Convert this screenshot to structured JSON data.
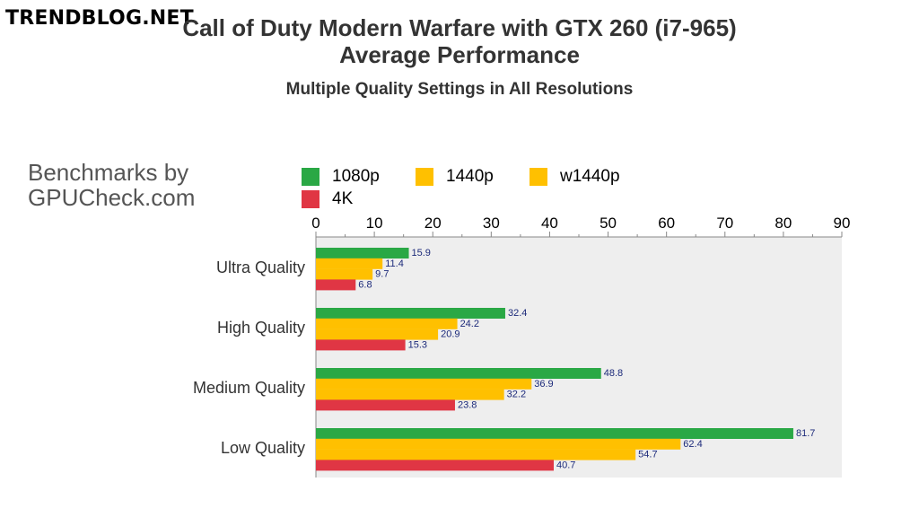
{
  "watermark": "TRENDBLOG.NET",
  "credit": {
    "line1": "Benchmarks by",
    "line2": "GPUCheck.com"
  },
  "colors": {
    "1080p": "#2aa845",
    "1440p": "#ffc000",
    "w1440p": "#ffc000",
    "4K": "#e03644"
  },
  "chart_data": {
    "type": "bar",
    "orientation": "horizontal",
    "title": "Call of Duty Modern Warfare with GTX 260 (i7-965)",
    "title_line2": "Average Performance",
    "subtitle": "Multiple Quality Settings in All Resolutions",
    "xlabel": "",
    "ylabel": "",
    "xlim": [
      0,
      90
    ],
    "ticks": [
      "0",
      "10",
      "20",
      "30",
      "40",
      "50",
      "60",
      "70",
      "80",
      "90"
    ],
    "categories": [
      "Ultra Quality",
      "High Quality",
      "Medium Quality",
      "Low Quality"
    ],
    "series": [
      {
        "name": "1080p",
        "values": [
          15.9,
          32.4,
          48.8,
          81.7
        ]
      },
      {
        "name": "1440p",
        "values": [
          11.4,
          24.2,
          36.9,
          62.4
        ]
      },
      {
        "name": "w1440p",
        "values": [
          9.7,
          20.9,
          32.2,
          54.7
        ]
      },
      {
        "name": "4K",
        "values": [
          6.8,
          15.3,
          23.8,
          40.7
        ]
      }
    ],
    "value_labels": [
      [
        "15.9",
        "32.4",
        "48.8",
        "81.7"
      ],
      [
        "11.4",
        "24.2",
        "36.9",
        "62.4"
      ],
      [
        "9.7",
        "20.9",
        "32.2",
        "54.7"
      ],
      [
        "6.8",
        "15.3",
        "23.8",
        "40.7"
      ]
    ],
    "legend_position": "top",
    "grid": false
  }
}
